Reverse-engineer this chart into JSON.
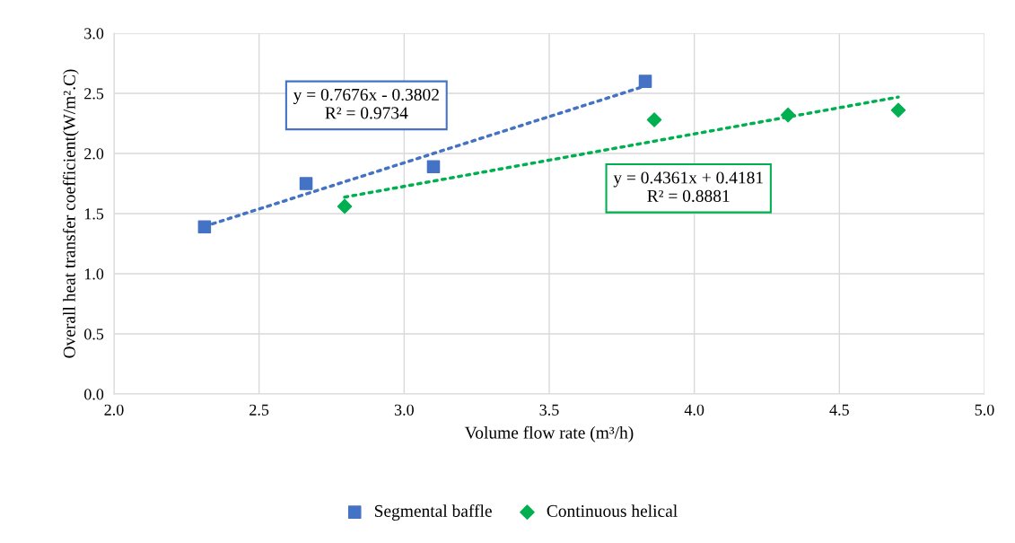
{
  "chart_data": {
    "type": "scatter",
    "xlabel": "Volume flow rate (m³/h)",
    "ylabel": "Overall heat transfer coefficient(W/m².C)",
    "xlim": [
      2.0,
      5.0
    ],
    "xticks": [
      {
        "value": 2.0,
        "label": "2.0"
      },
      {
        "value": 2.5,
        "label": "2.5"
      },
      {
        "value": 3.0,
        "label": "3.0"
      },
      {
        "value": 3.5,
        "label": "3.5"
      },
      {
        "value": 4.0,
        "label": "4.0"
      },
      {
        "value": 4.5,
        "label": "4.5"
      },
      {
        "value": 5.0,
        "label": "5.0"
      }
    ],
    "ylim": [
      0.0,
      3.0
    ],
    "yticks": [
      {
        "value": 0.0,
        "label": "0.0"
      },
      {
        "value": 0.5,
        "label": "0.5"
      },
      {
        "value": 1.0,
        "label": "1.0"
      },
      {
        "value": 1.5,
        "label": "1.5"
      },
      {
        "value": 2.0,
        "label": "2.0"
      },
      {
        "value": 2.5,
        "label": "2.5"
      },
      {
        "value": 3.0,
        "label": "3.0"
      }
    ],
    "grid": true,
    "legend": "bottom",
    "series": [
      {
        "name": "Segmental baffle",
        "color": "#4472c4",
        "marker": "square",
        "x": [
          2.312,
          2.662,
          3.101,
          3.831
        ],
        "values": [
          1.39,
          1.75,
          1.89,
          2.6
        ]
      },
      {
        "name": "Continuous helical",
        "color": "#00b050",
        "marker": "diamond",
        "x": [
          2.795,
          3.862,
          4.323,
          4.703
        ],
        "values": [
          1.56,
          2.28,
          2.32,
          2.36
        ]
      },
      {
        "type": "line",
        "color": "#4472c4",
        "line_style": "dotted",
        "x": [
          2.312,
          3.831
        ],
        "values": [
          1.394,
          2.561
        ]
      },
      {
        "type": "line",
        "color": "#00b050",
        "line_style": "dotted",
        "x": [
          2.795,
          4.703
        ],
        "values": [
          1.637,
          2.469
        ]
      }
    ],
    "annotations": [
      "y = 0.7676x - 0.3802\nR² = 0.9734",
      "y = 0.4361x + 0.4181\nR² = 0.8881"
    ]
  }
}
